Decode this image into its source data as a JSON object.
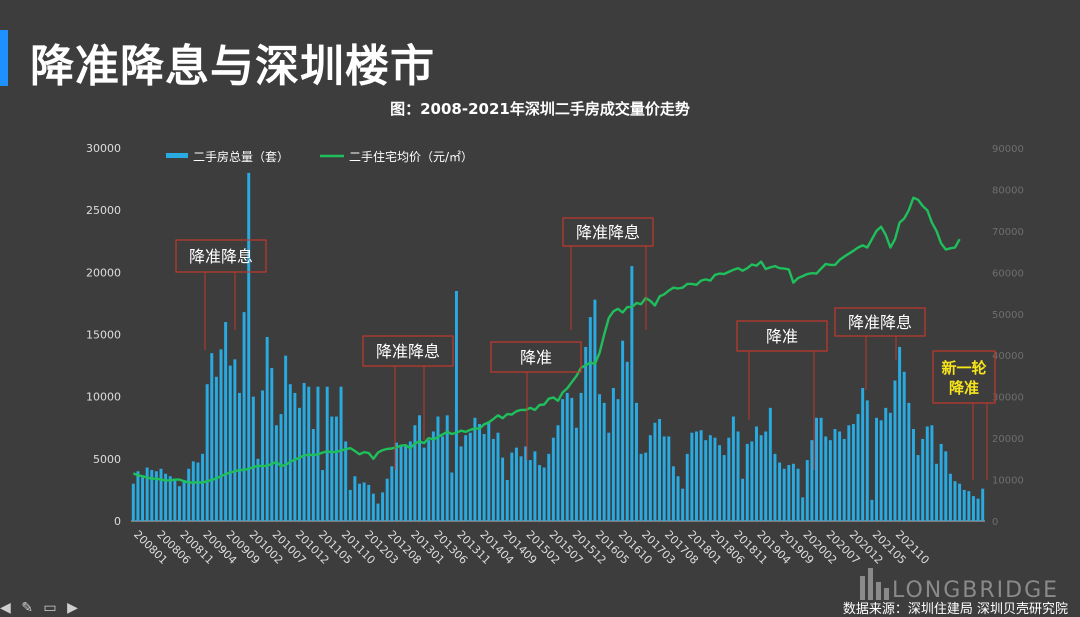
{
  "slide": {
    "title": "降准降息与深圳楼市",
    "source": "数据来源：深圳住建局 深圳贝壳研究院",
    "watermark": "LONGBRIDGE"
  },
  "colors": {
    "background": "#3d3d3d",
    "accent": "#1e90ff",
    "bar": "#29abe2",
    "line": "#1fbf5c",
    "box_border": "#c0392b",
    "highlight_text": "#f5e31b",
    "axis_text": "#dddddd"
  },
  "chart_data": {
    "type": "bar",
    "title": "图：2008-2021年深圳二手房成交量价走势",
    "legend": [
      "二手房总量（套）",
      "二手住宅均价（元/㎡）"
    ],
    "legend_position": "top-left",
    "grid": false,
    "y_left": {
      "ticks": [
        "0",
        "5000",
        "10000",
        "15000",
        "20000",
        "25000",
        "30000"
      ],
      "lim": [
        0,
        30000
      ]
    },
    "y_right": {
      "ticks": [
        "0",
        "10000",
        "20000",
        "30000",
        "40000",
        "50000",
        "60000",
        "70000",
        "80000",
        "90000"
      ],
      "lim": [
        0,
        90000
      ]
    },
    "x_tick_labels": [
      "200801",
      "200806",
      "200811",
      "200904",
      "200909",
      "201002",
      "201007",
      "201012",
      "201105",
      "201110",
      "201203",
      "201208",
      "201301",
      "201306",
      "201311",
      "201404",
      "201409",
      "201502",
      "201507",
      "201512",
      "201605",
      "201610",
      "201703",
      "201708",
      "201801",
      "201806",
      "201811",
      "201904",
      "201909",
      "202002",
      "202007",
      "202012",
      "202105",
      "202110"
    ],
    "x_tick_step": 5,
    "series": [
      {
        "name": "二手房总量（套）",
        "type": "bar",
        "axis": "left",
        "values": [
          3000,
          4000,
          3500,
          4300,
          4100,
          4000,
          4200,
          3800,
          3600,
          3400,
          2800,
          3300,
          4200,
          4800,
          4700,
          5400,
          11000,
          13500,
          11600,
          13800,
          16000,
          12500,
          13000,
          10300,
          16800,
          28000,
          10000,
          5000,
          10500,
          14800,
          12300,
          7700,
          8600,
          13300,
          11000,
          10300,
          9100,
          11100,
          10800,
          7400,
          10800,
          4100,
          10800,
          8400,
          8400,
          10800,
          6400,
          2500,
          3600,
          3000,
          3100,
          2900,
          2200,
          1400,
          2300,
          3400,
          4400,
          6300,
          6100,
          6100,
          6400,
          7700,
          8500,
          5900,
          6500,
          7200,
          8400,
          6800,
          8500,
          3900,
          18500,
          6000,
          6900,
          7100,
          8300,
          7800,
          7000,
          8000,
          6600,
          7100,
          5100,
          3300,
          5500,
          5900,
          5200,
          6000,
          4900,
          5600,
          4500,
          4300,
          5400,
          6700,
          7700,
          9800,
          10300,
          9900,
          7500,
          10300,
          14000,
          16400,
          17800,
          10200,
          9500,
          7100,
          10700,
          9800,
          14500,
          12800,
          20500,
          9500,
          5400,
          5500,
          6900,
          7900,
          8200,
          6800,
          6800,
          4400,
          3600,
          2600,
          5400,
          7100,
          7200,
          7300,
          6500,
          6900,
          6700,
          6100,
          5300,
          6700,
          8400,
          7200,
          3400,
          6200,
          6400,
          7600,
          6900,
          7200,
          9100,
          5400,
          4700,
          4200,
          4500,
          4600,
          4200,
          1900,
          4900,
          6500,
          8300,
          8300,
          6800,
          6500,
          7400,
          7200,
          6600,
          7700,
          7800,
          8600,
          10700,
          9700,
          1700,
          8300,
          8100,
          9100,
          8700,
          11300,
          14000,
          12000,
          9500,
          7400,
          5300,
          6600,
          7600,
          7700,
          4600,
          6200,
          5600,
          3800,
          3200,
          3000,
          2500,
          2400,
          2000,
          1800,
          2600
        ]
      },
      {
        "name": "二手住宅均价（元/㎡）",
        "type": "line",
        "axis": "right",
        "values": [
          11500,
          11000,
          10800,
          10500,
          10200,
          10200,
          10000,
          9800,
          9800,
          10000,
          10000,
          9600,
          9300,
          9300,
          9300,
          9300,
          9600,
          9900,
          10300,
          10800,
          11300,
          11700,
          12000,
          12300,
          12300,
          12600,
          13000,
          13300,
          13300,
          13300,
          13800,
          14200,
          13300,
          13500,
          14300,
          14800,
          15300,
          15800,
          16000,
          15900,
          16100,
          16500,
          16800,
          16600,
          16700,
          17000,
          17300,
          17600,
          16900,
          16100,
          16600,
          16400,
          15000,
          16500,
          17100,
          17400,
          17500,
          17800,
          18200,
          18300,
          17600,
          18700,
          19200,
          18800,
          20000,
          19700,
          20300,
          20900,
          21500,
          21000,
          21300,
          21800,
          21500,
          22000,
          22300,
          22300,
          23300,
          23800,
          24600,
          25500,
          24800,
          25800,
          25700,
          26500,
          26800,
          26800,
          27300,
          26800,
          28000,
          28100,
          29500,
          29800,
          29000,
          31000,
          32000,
          33500,
          35000,
          37000,
          37600,
          38200,
          37900,
          40500,
          45000,
          49000,
          50600,
          51200,
          50300,
          51600,
          51600,
          52600,
          52300,
          53800,
          53100,
          52000,
          54200,
          54700,
          55600,
          56300,
          56100,
          56300,
          57200,
          57200,
          57000,
          58000,
          58300,
          58000,
          59400,
          59700,
          59600,
          60100,
          60600,
          61000,
          60400,
          61000,
          61900,
          61600,
          62600,
          60800,
          61200,
          61500,
          61000,
          60900,
          60700,
          57500,
          58600,
          59100,
          59600,
          59800,
          59700,
          60900,
          62000,
          61800,
          61800,
          63000,
          63800,
          64500,
          65200,
          66000,
          66500,
          66000,
          68000,
          70000,
          71000,
          69000,
          66000,
          68000,
          72000,
          73000,
          75000,
          78000,
          77500,
          76000,
          75000,
          72000,
          70000,
          67000,
          65500,
          65800,
          66000,
          68000
        ]
      }
    ],
    "annotations": [
      {
        "text": "降准降息",
        "highlight": false
      },
      {
        "text": "降准降息",
        "highlight": false
      },
      {
        "text": "降准",
        "highlight": false
      },
      {
        "text": "降准降息",
        "highlight": false
      },
      {
        "text": "降准",
        "highlight": false
      },
      {
        "text": "降准降息",
        "highlight": false
      },
      {
        "text": "新一轮降准",
        "highlight": true
      }
    ]
  }
}
